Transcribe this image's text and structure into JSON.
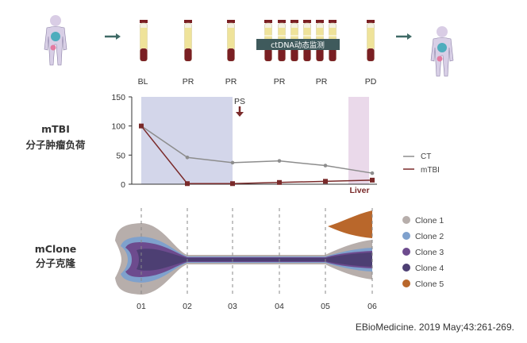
{
  "timeline": {
    "stages": [
      "BL",
      "PR",
      "PR",
      "PR",
      "PR",
      "PD"
    ],
    "ctdna_label": "ctDNA动态监测"
  },
  "mtbi_panel": {
    "title_line1": "mTBI",
    "title_line2": "分子肿瘤负荷",
    "ps_label": "PS",
    "liver_label": "Liver",
    "legend": {
      "ct": "CT",
      "mtbi": "mTBI"
    }
  },
  "mclone_panel": {
    "title_line1": "mClone",
    "title_line2": "分子克隆",
    "legend": [
      {
        "name": "Clone 1",
        "color": "#b7aeab"
      },
      {
        "name": "Clone 2",
        "color": "#7fa1cd"
      },
      {
        "name": "Clone 3",
        "color": "#6d4b8e"
      },
      {
        "name": "Clone 4",
        "color": "#4d3f73"
      },
      {
        "name": "Clone 5",
        "color": "#b9672b"
      }
    ]
  },
  "citation": "EBioMedicine. 2019 May;43:261-269.",
  "colors": {
    "ct_line": "#8d8d8d",
    "mtbi_line": "#7a2a2a",
    "blue_band": "#d3d6ea",
    "pink_band": "#ead9ea",
    "arrow": "#3f6a66",
    "ctdna_box": "#3f5a5c"
  },
  "chart_data": {
    "type": "line",
    "categories": [
      "01",
      "02",
      "03",
      "04",
      "05",
      "06"
    ],
    "ylim": [
      0,
      150
    ],
    "yticks": [
      "0",
      "50",
      "100",
      "150"
    ],
    "series": [
      {
        "name": "CT",
        "values": [
          100,
          46,
          37,
          40,
          32,
          19
        ]
      },
      {
        "name": "mTBI",
        "values": [
          100,
          1,
          1,
          3,
          5,
          7
        ]
      }
    ]
  }
}
